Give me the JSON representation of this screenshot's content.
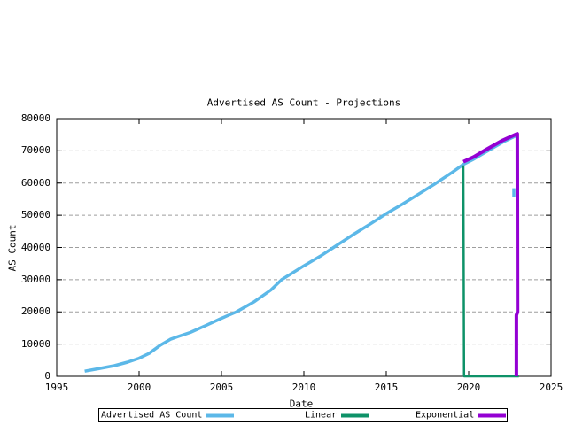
{
  "chart_data": {
    "type": "line",
    "title": "Advertised AS Count - Projections",
    "xlabel": "Date",
    "ylabel": "AS Count",
    "xlim": [
      1995,
      2025
    ],
    "ylim": [
      0,
      80000
    ],
    "x_ticks": [
      1995,
      2000,
      2005,
      2010,
      2015,
      2020,
      2025
    ],
    "y_ticks": [
      0,
      10000,
      20000,
      30000,
      40000,
      50000,
      60000,
      70000,
      80000
    ],
    "grid": {
      "horizontal": true,
      "vertical": false,
      "style": "dashed",
      "color": "#9e9e9e"
    },
    "legend_position": "bottom-outside",
    "background": "#ffffff",
    "border_color": "#000000",
    "series": [
      {
        "name": "Advertised AS Count",
        "color": "#5cb8e8",
        "width": 3.5,
        "paths": [
          [
            [
              1996.7,
              1600
            ],
            [
              1997.5,
              2350
            ],
            [
              1998.5,
              3300
            ],
            [
              1999.3,
              4400
            ],
            [
              2000.0,
              5600
            ],
            [
              2000.6,
              7100
            ],
            [
              2001.3,
              9700
            ],
            [
              2001.9,
              11500
            ],
            [
              2002.4,
              12400
            ],
            [
              2003.1,
              13600
            ],
            [
              2004.1,
              15900
            ],
            [
              2005.0,
              18000
            ],
            [
              2005.9,
              20000
            ],
            [
              2007.0,
              23200
            ],
            [
              2008.0,
              26800
            ],
            [
              2008.65,
              30000
            ],
            [
              2010.0,
              34300
            ],
            [
              2011.0,
              37300
            ],
            [
              2011.8,
              40000
            ],
            [
              2013.0,
              44000
            ],
            [
              2014.0,
              47200
            ],
            [
              2015.0,
              50500
            ],
            [
              2016.0,
              53500
            ],
            [
              2017.0,
              56700
            ],
            [
              2018.0,
              59900
            ],
            [
              2019.0,
              63300
            ],
            [
              2019.68,
              65800
            ],
            [
              2020.3,
              67400
            ],
            [
              2021.2,
              70100
            ],
            [
              2022.1,
              72800
            ],
            [
              2022.88,
              74700
            ]
          ],
          [
            [
              2022.74,
              55600
            ],
            [
              2022.74,
              58400
            ]
          ]
        ]
      },
      {
        "name": "Linear",
        "color": "#0e9268",
        "width": 2.5,
        "paths": [
          [
            [
              2019.68,
              65500
            ],
            [
              2019.72,
              0
            ],
            [
              2023.05,
              0
            ]
          ]
        ]
      },
      {
        "name": "Exponential",
        "color": "#9400d3",
        "width": 4,
        "paths": [
          [
            [
              2019.68,
              66600
            ],
            [
              2020.3,
              68100
            ],
            [
              2021.0,
              70200
            ],
            [
              2022.0,
              73100
            ],
            [
              2022.95,
              75300
            ],
            [
              2022.97,
              20000
            ],
            [
              2022.9,
              19000
            ],
            [
              2022.9,
              0
            ]
          ]
        ]
      }
    ]
  }
}
